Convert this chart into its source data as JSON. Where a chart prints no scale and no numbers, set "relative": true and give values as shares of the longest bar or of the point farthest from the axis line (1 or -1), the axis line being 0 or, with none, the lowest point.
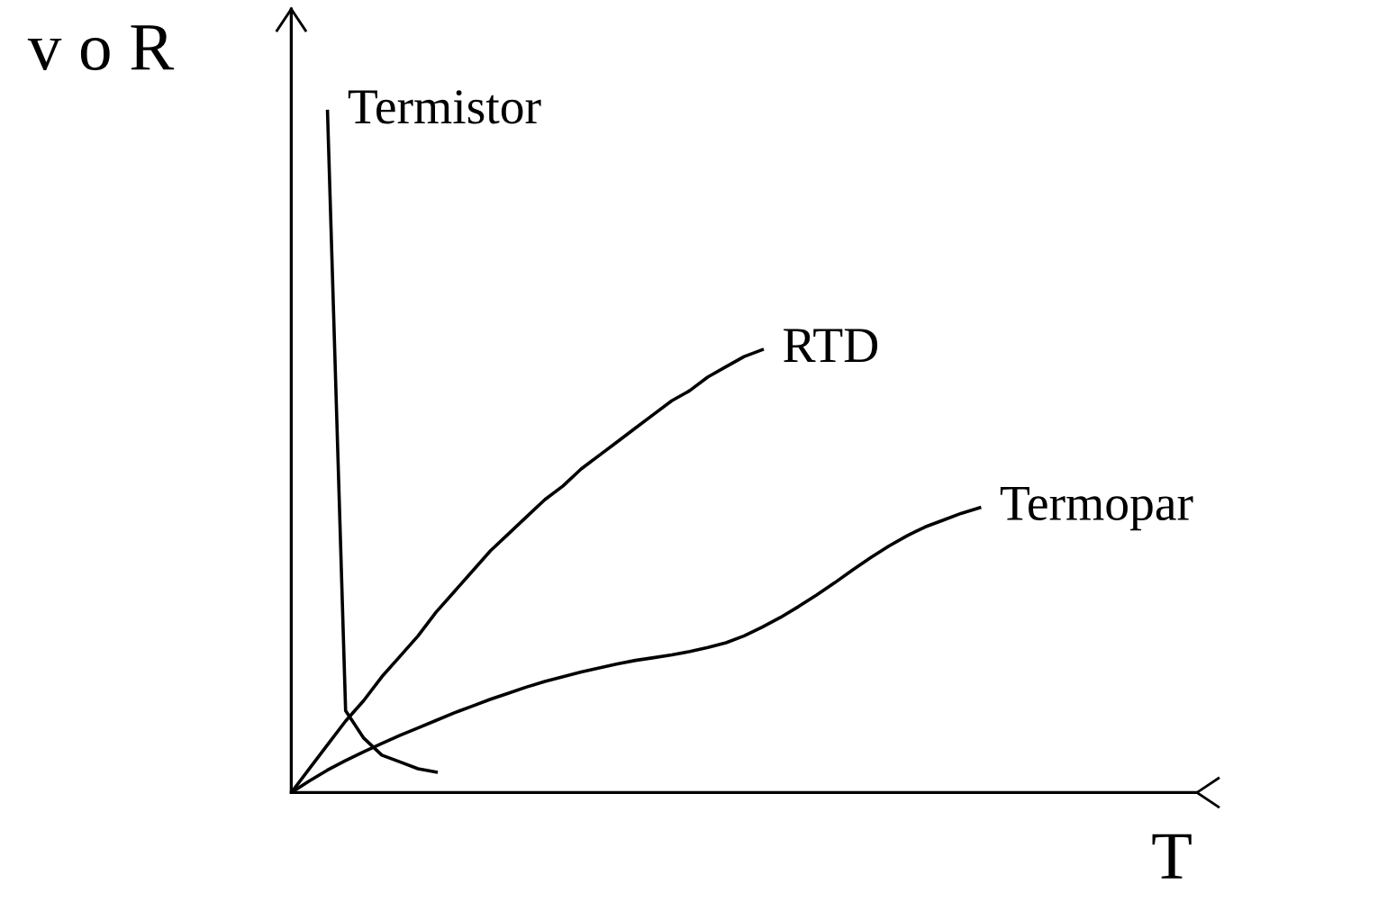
{
  "chart_data": {
    "type": "line",
    "relative": true,
    "xlabel": "T",
    "ylabel": "v o R",
    "legend": false,
    "marker": "none",
    "line_style": "solid",
    "categories": [
      null,
      null,
      null,
      null,
      null,
      null,
      null,
      null,
      null,
      null,
      null,
      null,
      null,
      null,
      null,
      null,
      null,
      null,
      null,
      null,
      null,
      null,
      null,
      null,
      null,
      null,
      null,
      null,
      null,
      null,
      null,
      null,
      null,
      null,
      null,
      null,
      null,
      null,
      null,
      null,
      null,
      null,
      null,
      null,
      null,
      null,
      null,
      null,
      null,
      null,
      null
    ],
    "series": [
      {
        "name": "Termistor",
        "color": "#000000",
        "values": [
          null,
          null,
          1,
          0.12,
          0.08,
          0.055,
          0.045,
          0.035,
          0.03,
          null,
          null,
          null,
          null,
          null,
          null,
          null,
          null,
          null,
          null,
          null,
          null,
          null,
          null,
          null,
          null,
          null,
          null,
          null,
          null,
          null,
          null,
          null,
          null,
          null,
          null,
          null,
          null,
          null,
          null,
          null,
          null,
          null,
          null,
          null,
          null,
          null,
          null,
          null,
          null,
          null,
          null
        ]
      },
      {
        "name": "RTD",
        "color": "#000000",
        "values": [
          0,
          0.035,
          0.07,
          0.105,
          0.135,
          0.17,
          0.2,
          0.23,
          0.265,
          0.295,
          0.325,
          0.355,
          0.38,
          0.405,
          0.43,
          0.45,
          0.475,
          0.495,
          0.515,
          0.535,
          0.555,
          0.575,
          0.59,
          0.61,
          0.625,
          0.64,
          0.65,
          null,
          null,
          null,
          null,
          null,
          null,
          null,
          null,
          null,
          null,
          null,
          null,
          null,
          null,
          null,
          null,
          null,
          null,
          null,
          null,
          null,
          null,
          null,
          null
        ]
      },
      {
        "name": "Termopar",
        "color": "#000000",
        "values": [
          0,
          0.017,
          0.033,
          0.047,
          0.06,
          0.072,
          0.084,
          0.095,
          0.106,
          0.117,
          0.127,
          0.137,
          0.146,
          0.155,
          0.163,
          0.17,
          0.177,
          0.183,
          0.189,
          0.194,
          0.198,
          0.202,
          0.207,
          0.213,
          0.22,
          0.23,
          0.243,
          0.257,
          0.273,
          0.29,
          0.308,
          0.327,
          0.345,
          0.362,
          0.377,
          0.39,
          0.4,
          0.41,
          0.418,
          null,
          null,
          null,
          null,
          null,
          null,
          null,
          null,
          null,
          null,
          null,
          null
        ]
      }
    ]
  }
}
